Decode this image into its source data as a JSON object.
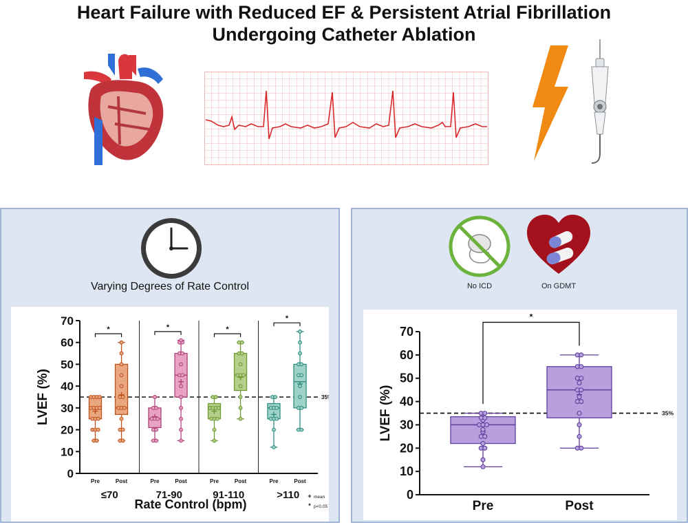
{
  "title": {
    "line1": "Heart Failure with Reduced EF & Persistent Atrial Fibrillation",
    "line2": "Undergoing Catheter Ablation"
  },
  "colors": {
    "panel_bg": "#dde6f2",
    "panel_border": "#9fb4d6",
    "ecg_grid": "#f3b6b6",
    "ecg_trace": "#d9262a",
    "bolt": "#f08a12",
    "g70": "#c0521d",
    "g70_fill": "#e9a77f",
    "g90": "#b0427a",
    "g90_fill": "#e8a3c4",
    "g110": "#6e9a34",
    "g110_fill": "#b5d08a",
    "ggt": "#2f8c7f",
    "ggt_fill": "#9fd3c9",
    "purple": "#5e3d9c",
    "purple_fill": "#b8a0df",
    "no_icd": "#6bb33c",
    "gdmt_heart": "#a3111c"
  },
  "left_panel": {
    "clock_icon": "clock-icon",
    "label": "Varying Degrees of Rate Control"
  },
  "right_panel": {
    "no_icd_label": "No ICD",
    "gdmt_label": "On GDMT"
  },
  "chart_data": [
    {
      "type": "box",
      "title": "",
      "xlabel": "Rate Control (bpm)",
      "ylabel": "LVEF (%)",
      "ylim": [
        0,
        70
      ],
      "yticks": [
        0,
        10,
        20,
        30,
        40,
        50,
        60,
        70
      ],
      "threshold": 35,
      "threshold_label": "35%",
      "sig_marker": "*",
      "legend": [
        {
          "symbol": "+",
          "label": "mean"
        },
        {
          "symbol": "*",
          "label": "p<0.05"
        }
      ],
      "groups": [
        {
          "name": "≤70",
          "color_key": "g70",
          "series": [
            {
              "name": "Pre",
              "q1": 25,
              "median": 30,
              "q3": 35,
              "min": 15,
              "max": 35,
              "mean": 28.5,
              "points": [
                15,
                15,
                20,
                20,
                20,
                25,
                25,
                25,
                30,
                30,
                30,
                30,
                35,
                35,
                35,
                35
              ]
            },
            {
              "name": "Post",
              "q1": 27,
              "median": 30,
              "q3": 50,
              "min": 15,
              "max": 60,
              "mean": 36,
              "points": [
                15,
                15,
                20,
                20,
                25,
                30,
                30,
                30,
                35,
                35,
                40,
                45,
                50,
                55,
                60
              ]
            }
          ]
        },
        {
          "name": "71-90",
          "color_key": "g90",
          "series": [
            {
              "name": "Pre",
              "q1": 21,
              "median": 25,
              "q3": 30,
              "min": 15,
              "max": 35,
              "mean": 26,
              "points": [
                15,
                15,
                20,
                20,
                25,
                25,
                25,
                30,
                30,
                35
              ]
            },
            {
              "name": "Post",
              "q1": 35,
              "median": 45,
              "q3": 55,
              "min": 15,
              "max": 61,
              "mean": 42,
              "points": [
                15,
                20,
                25,
                30,
                35,
                40,
                45,
                45,
                50,
                55,
                55,
                60,
                60,
                61
              ]
            }
          ]
        },
        {
          "name": "91-110",
          "color_key": "g110",
          "series": [
            {
              "name": "Pre",
              "q1": 25,
              "median": 30,
              "q3": 32,
              "min": 15,
              "max": 35,
              "mean": 28.5,
              "points": [
                15,
                20,
                25,
                25,
                25,
                30,
                30,
                30,
                30,
                35,
                35
              ]
            },
            {
              "name": "Post",
              "q1": 38,
              "median": 45,
              "q3": 55,
              "min": 25,
              "max": 60,
              "mean": 44,
              "points": [
                25,
                30,
                35,
                40,
                45,
                45,
                45,
                50,
                55,
                55,
                60,
                60
              ]
            }
          ]
        },
        {
          "name": ">110",
          "color_key": "ggt",
          "series": [
            {
              "name": "Pre",
              "q1": 25,
              "median": 30,
              "q3": 32,
              "min": 12,
              "max": 35,
              "mean": 27,
              "points": [
                12,
                20,
                25,
                25,
                25,
                30,
                30,
                30,
                35,
                35
              ]
            },
            {
              "name": "Post",
              "q1": 30,
              "median": 42,
              "q3": 50,
              "min": 20,
              "max": 65,
              "mean": 41,
              "points": [
                20,
                20,
                30,
                30,
                35,
                40,
                45,
                45,
                50,
                50,
                55,
                60,
                65
              ]
            }
          ]
        }
      ]
    },
    {
      "type": "box",
      "title": "",
      "xlabel": "",
      "ylabel": "LVEF (%)",
      "ylim": [
        0,
        70
      ],
      "yticks": [
        0,
        10,
        20,
        30,
        40,
        50,
        60,
        70
      ],
      "threshold": 35,
      "threshold_label": "35%",
      "sig_marker": "*",
      "categories": [
        "Pre",
        "Post"
      ],
      "series": [
        {
          "name": "Pre",
          "q1": 22,
          "median": 30,
          "q3": 33.5,
          "min": 12,
          "max": 35,
          "mean": 27,
          "points": [
            12,
            15,
            20,
            20,
            22,
            25,
            25,
            27,
            28,
            30,
            30,
            30,
            32,
            33,
            33,
            35,
            35
          ]
        },
        {
          "name": "Post",
          "q1": 33,
          "median": 45,
          "q3": 55,
          "min": 20,
          "max": 60,
          "mean": 43,
          "points": [
            20,
            20,
            25,
            30,
            35,
            40,
            40,
            42,
            45,
            45,
            48,
            50,
            50,
            55,
            55,
            60,
            60
          ]
        }
      ]
    }
  ]
}
